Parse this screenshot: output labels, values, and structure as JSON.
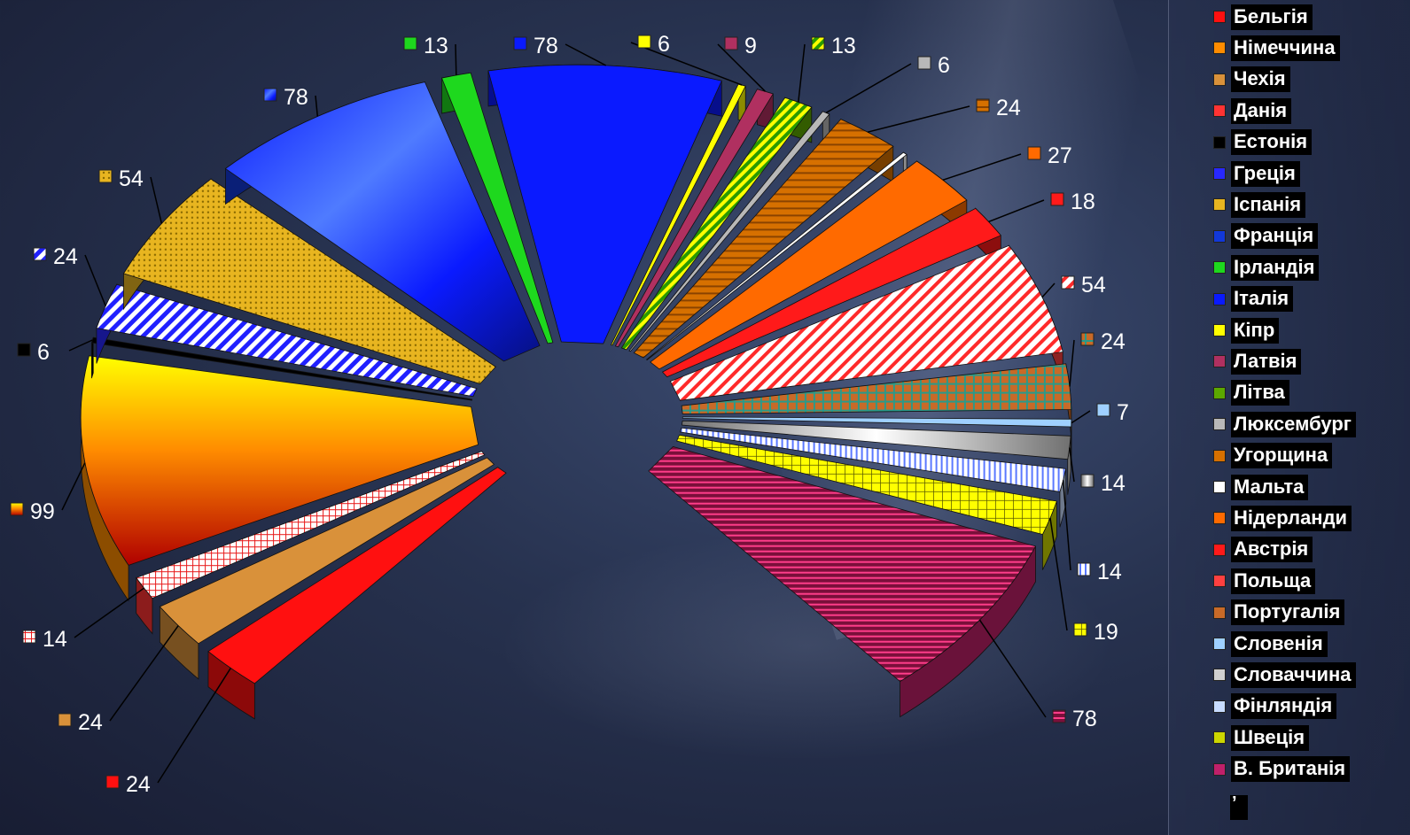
{
  "chart_data": {
    "type": "pie",
    "title": "",
    "categories": [
      "Бельгія",
      "Чехія",
      "Данія",
      "Німеччина",
      "Естонія",
      "Греція",
      "Іспанія",
      "Франція",
      "Ірландія",
      "Італія",
      "Кіпр",
      "Латвія",
      "Літва",
      "Люксембург",
      "Угорщина",
      "Мальта",
      "Нідерланди",
      "Австрія",
      "Польща",
      "Португалія",
      "Словенія",
      "Словаччина",
      "Фінляндія",
      "Швеція",
      "В. Британія"
    ],
    "values": [
      24,
      24,
      14,
      99,
      6,
      24,
      54,
      78,
      13,
      78,
      6,
      9,
      13,
      6,
      24,
      5,
      27,
      18,
      54,
      24,
      7,
      14,
      14,
      19,
      78
    ],
    "value_labels": [
      "24",
      "24",
      "14",
      "99",
      "6",
      "24",
      "54",
      "78",
      "13",
      "78",
      "6",
      "9",
      "13",
      "6",
      "24",
      "",
      "27",
      "18",
      "54",
      "24",
      "7",
      "14",
      "14",
      "19",
      "78"
    ],
    "colors": [
      "#ff1010",
      "#d9913a",
      "#ff3333",
      "#ff8c00",
      "#000000",
      "#2828ff",
      "#e8b520",
      "#1238d8",
      "#1ed81e",
      "#0a1aff",
      "#ffff00",
      "#b03060",
      "#5ca800",
      "#b8b8b8",
      "#d67000",
      "#ffffff",
      "#ff6a00",
      "#ff1a1a",
      "#ff4040",
      "#c86a28",
      "#9fd0ff",
      "#d0d0d0",
      "#c8dcff",
      "#ccd600",
      "#c0206a"
    ],
    "legend_position": "right",
    "legend_extra": "’"
  }
}
